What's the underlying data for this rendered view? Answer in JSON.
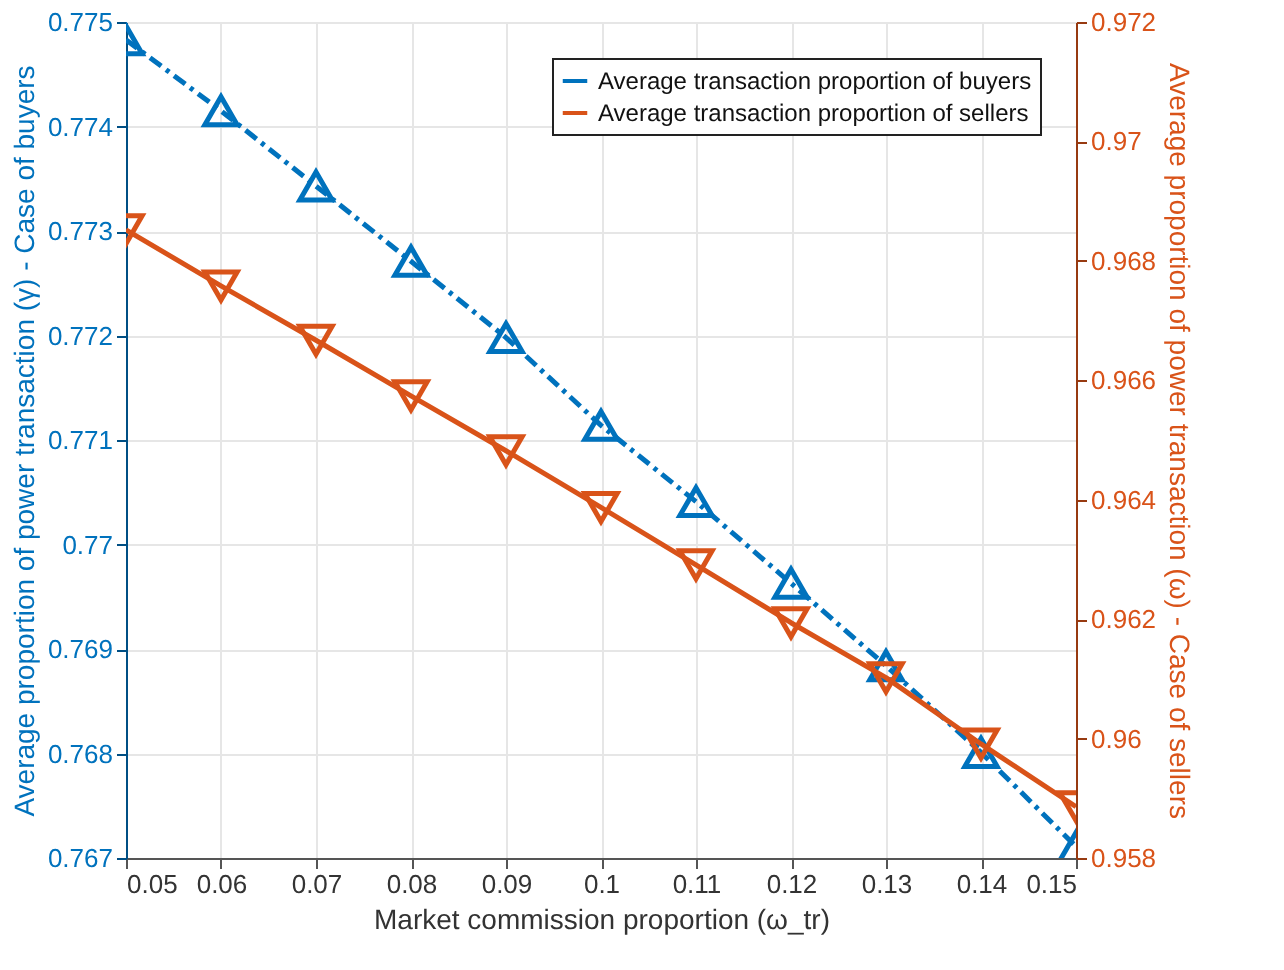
{
  "chart_data": {
    "type": "line",
    "x": [
      0.05,
      0.06,
      0.07,
      0.08,
      0.09,
      0.1,
      0.11,
      0.12,
      0.13,
      0.14,
      0.15
    ],
    "xlabel": "Market commission proportion (ω_tr)",
    "ylabel": "Average proportion of power transaction (γ) - Case of buyers",
    "y2label": "Average proportion of power transaction (ω) - Case of sellers",
    "series": [
      {
        "name": "Average transaction proportion of buyers",
        "color": "#0072bd",
        "marker": "triangle",
        "line_style": "dashed",
        "values": [
          0.77483,
          0.77415,
          0.77343,
          0.77271,
          0.77198,
          0.77114,
          0.77041,
          0.76963,
          0.76884,
          0.76801,
          0.76711
        ]
      },
      {
        "name": "Average transaction proportion of sellers",
        "color": "#d95319",
        "marker": "triangle-down",
        "line_style": "solid",
        "axis": "y2",
        "values": [
          0.96852,
          0.96758,
          0.96667,
          0.96574,
          0.96482,
          0.96387,
          0.96291,
          0.96194,
          0.96102,
          0.95991,
          0.95886
        ]
      }
    ],
    "xlim": [
      0.05,
      0.15
    ],
    "xticks": [
      0.05,
      0.06,
      0.07,
      0.08,
      0.09,
      0.1,
      0.11,
      0.12,
      0.13,
      0.14,
      0.15
    ],
    "ylim": [
      0.767,
      0.775
    ],
    "yticks": [
      0.767,
      0.768,
      0.769,
      0.77,
      0.771,
      0.772,
      0.773,
      0.774,
      0.775
    ],
    "y2lim": [
      0.958,
      0.972
    ],
    "y2ticks": [
      0.958,
      0.96,
      0.962,
      0.964,
      0.966,
      0.968,
      0.97,
      0.972
    ],
    "grid": true,
    "legend": "top right"
  }
}
